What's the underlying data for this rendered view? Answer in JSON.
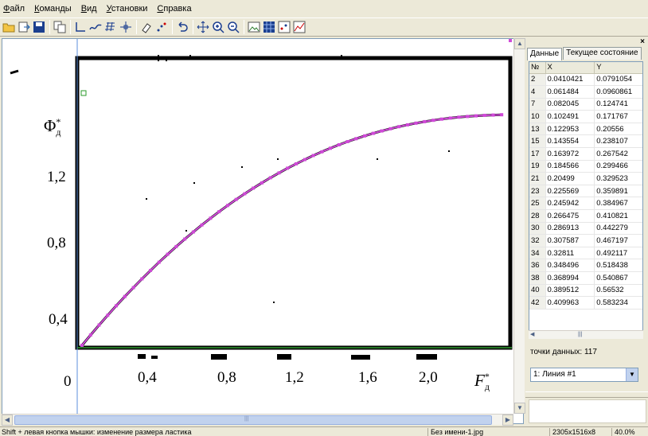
{
  "menu": [
    "Файл",
    "Команды",
    "Вид",
    "Установки",
    "Справка"
  ],
  "toolbar_icons": [
    "open-icon",
    "export-icon",
    "save-icon",
    "copy-icon",
    "axes-icon",
    "curve-icon",
    "grid-icon",
    "point-icon",
    "eraser-icon",
    "points-icon",
    "undo-icon",
    "move-icon",
    "zoom-in-icon",
    "zoom-out-icon",
    "image-icon",
    "grid-view-icon",
    "dots-icon",
    "chart-icon"
  ],
  "panel": {
    "tabs": [
      "Данные",
      "Текущее состояние"
    ],
    "columns": [
      "№",
      "X",
      "Y"
    ],
    "rows": [
      [
        "2",
        "0.0410421",
        "0.0791054"
      ],
      [
        "4",
        "0.061484",
        "0.0960861"
      ],
      [
        "7",
        "0.082045",
        "0.124741"
      ],
      [
        "10",
        "0.102491",
        "0.171767"
      ],
      [
        "13",
        "0.122953",
        "0.20556"
      ],
      [
        "15",
        "0.143554",
        "0.238107"
      ],
      [
        "17",
        "0.163972",
        "0.267542"
      ],
      [
        "19",
        "0.184566",
        "0.299466"
      ],
      [
        "21",
        "0.20499",
        "0.329523"
      ],
      [
        "23",
        "0.225569",
        "0.359891"
      ],
      [
        "25",
        "0.245942",
        "0.384967"
      ],
      [
        "28",
        "0.266475",
        "0.410821"
      ],
      [
        "30",
        "0.286913",
        "0.442279"
      ],
      [
        "32",
        "0.307587",
        "0.467197"
      ],
      [
        "34",
        "0.32811",
        "0.492117"
      ],
      [
        "36",
        "0.348496",
        "0.518438"
      ],
      [
        "38",
        "0.368994",
        "0.540867"
      ],
      [
        "40",
        "0.389512",
        "0.56532"
      ],
      [
        "42",
        "0.409963",
        "0.583234"
      ]
    ],
    "points_label": "точки данных: 117",
    "line_select": "1: Линия #1"
  },
  "graph": {
    "y_ticks": [
      "1,2",
      "0,8",
      "0,4"
    ],
    "x_ticks": [
      "0",
      "0,4",
      "0,8",
      "1,2",
      "1,6",
      "2,0"
    ],
    "y_axis_base": "Φ",
    "y_axis_sub": "д",
    "y_axis_sup": "*",
    "x_axis_base": "F",
    "x_axis_sub": "д",
    "x_axis_sup": "*",
    "curve_color": "#d04ad8"
  },
  "status": {
    "hint": "Shift + левая кнопка мышки: изменение размера ластика",
    "file": "Без имени-1.jpg",
    "dims": "2305x1516x8",
    "zoom": "40.0%"
  }
}
